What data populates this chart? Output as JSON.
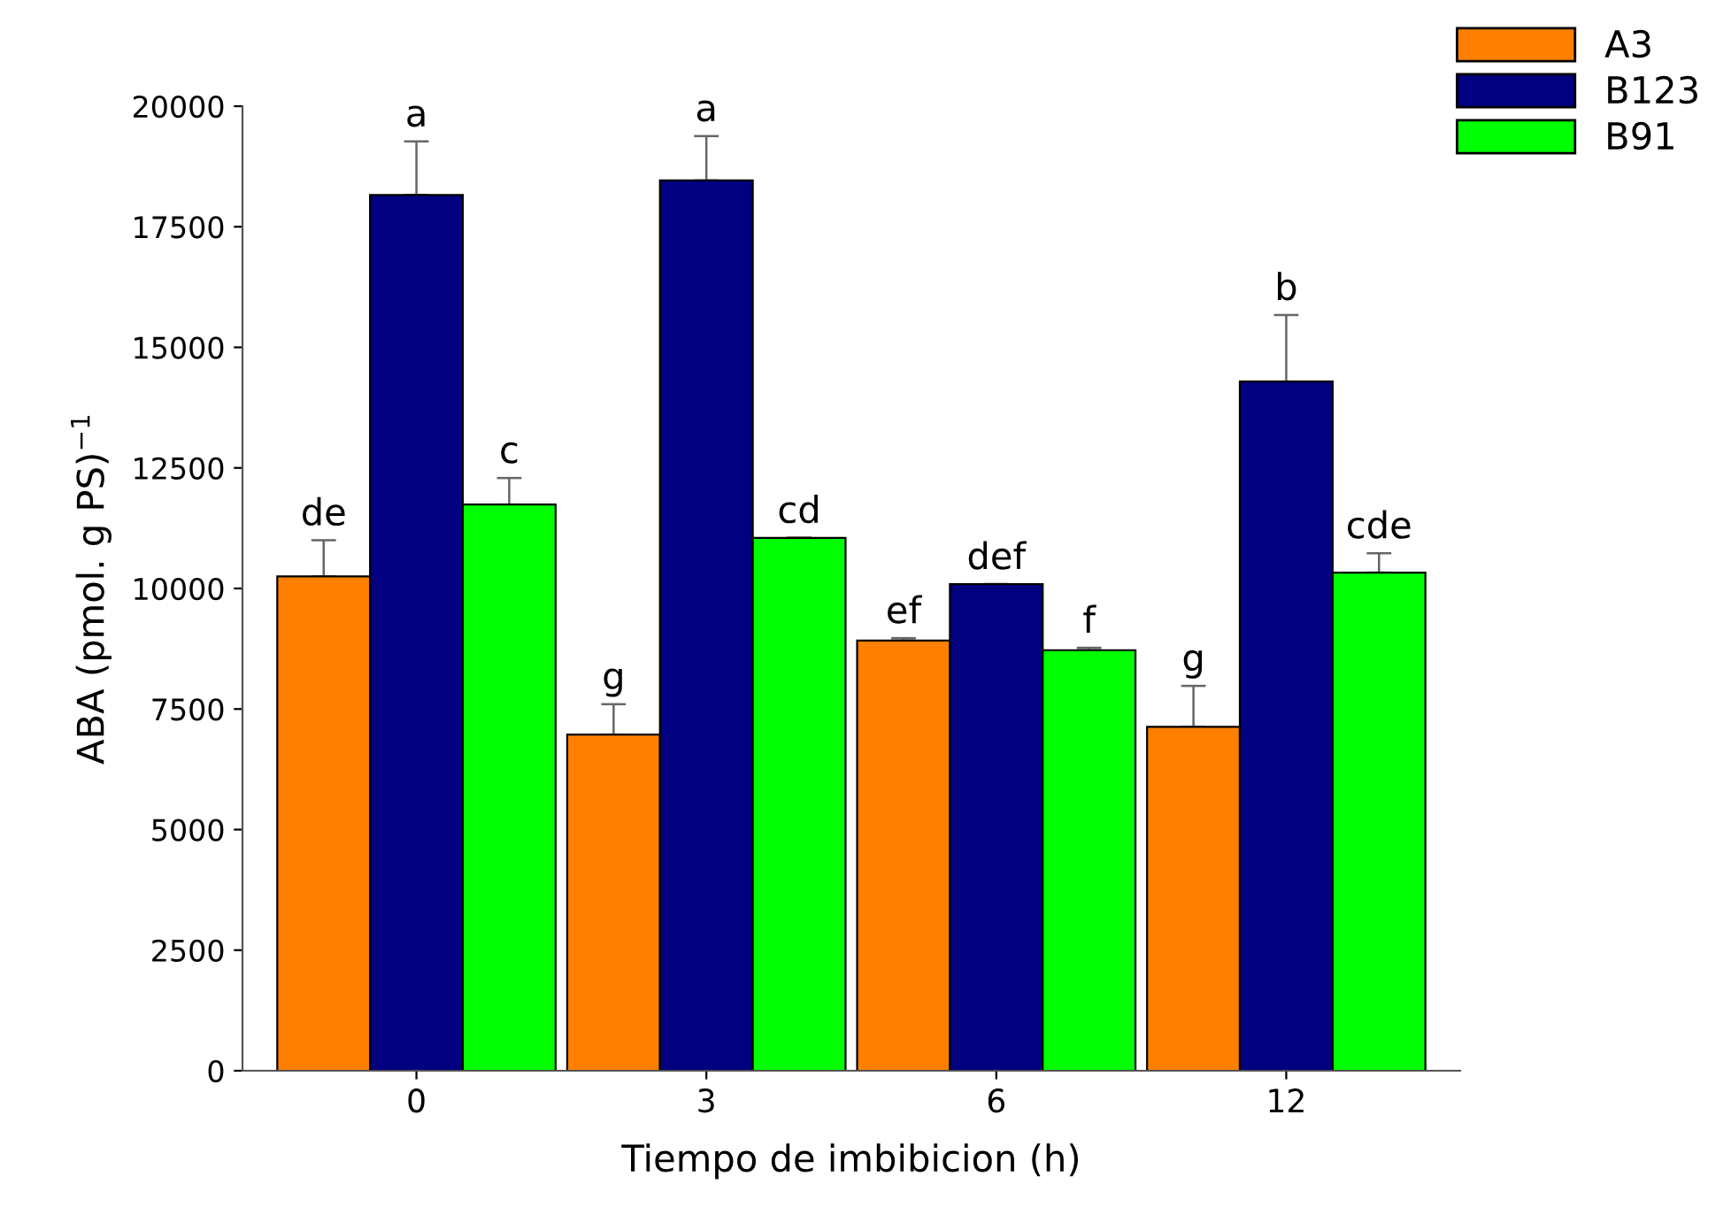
{
  "chart_data": {
    "type": "bar",
    "xlabel": "Tiempo de imbibicion (h)",
    "ylabel": "ABA (pmol. g PS)$^{−1}$",
    "categories": [
      "0",
      "3",
      "6",
      "12"
    ],
    "series": [
      {
        "name": "A3",
        "color": "#ff8000",
        "values": [
          10250,
          6970,
          8920,
          7130
        ],
        "errors": [
          [
            10250,
            11000
          ],
          [
            6970,
            7600
          ],
          [
            8920,
            8970
          ],
          [
            7130,
            7980
          ]
        ]
      },
      {
        "name": "B123",
        "color": "#000080",
        "values": [
          18160,
          18460,
          10090,
          14290
        ],
        "errors": [
          [
            18160,
            19270
          ],
          [
            18460,
            19380
          ],
          [
            10090,
            10090
          ],
          [
            14290,
            15670
          ]
        ]
      },
      {
        "name": "B91",
        "color": "#00ff00",
        "values": [
          11740,
          11050,
          8720,
          10330
        ],
        "errors": [
          [
            11740,
            12290
          ],
          [
            11050,
            11050
          ],
          [
            8720,
            8770
          ],
          [
            10330,
            10730
          ]
        ]
      }
    ],
    "ylim": [
      0,
      20000
    ],
    "yticks": [
      0,
      2500,
      5000,
      7500,
      10000,
      12500,
      15000,
      17500,
      20000
    ],
    "grid": false,
    "legend": "top right",
    "annotations": [
      "de",
      "a",
      "c",
      "g",
      "a",
      "cd",
      "ef",
      "def",
      "f",
      "g",
      "b",
      "cde"
    ]
  }
}
